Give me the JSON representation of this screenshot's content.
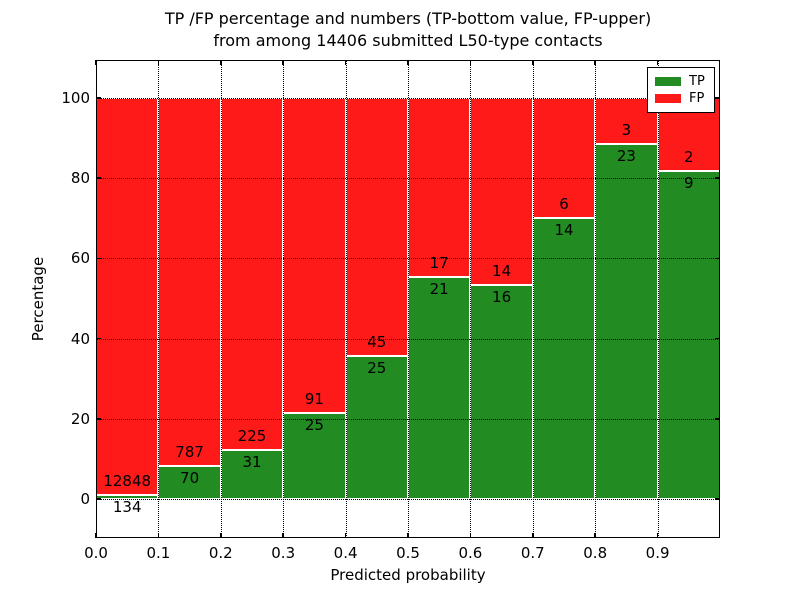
{
  "title": {
    "line1": "TP /FP percentage and numbers (TP-bottom value, FP-upper)",
    "line2": "from among 14406 submitted L50-type contacts"
  },
  "axes": {
    "xlabel": "Predicted probability",
    "ylabel": "Percentage",
    "x_tick_labels": [
      "0.0",
      "0.1",
      "0.2",
      "0.3",
      "0.4",
      "0.5",
      "0.6",
      "0.7",
      "0.8",
      "0.9"
    ],
    "y_tick_labels": [
      "0",
      "20",
      "40",
      "60",
      "80",
      "100"
    ],
    "y_tick_values": [
      0,
      20,
      40,
      60,
      80,
      100
    ]
  },
  "legend": {
    "items": [
      {
        "label": "TP",
        "color": "#228b22"
      },
      {
        "label": "FP",
        "color": "#ff1a1a"
      }
    ]
  },
  "colors": {
    "tp": "#228b22",
    "fp": "#ff1a1a",
    "edge": "#ffffff",
    "grid": "#000000",
    "axis": "#000000",
    "background": "#ffffff"
  },
  "chart_data": {
    "type": "bar",
    "stacked": true,
    "normalized_to_percent": true,
    "title": "TP /FP percentage and numbers (TP-bottom value, FP-upper) from among 14406 submitted L50-type contacts",
    "xlabel": "Predicted probability",
    "ylabel": "Percentage",
    "xlim": [
      0.0,
      1.0
    ],
    "ylim": [
      -10,
      110
    ],
    "bin_width": 0.1,
    "grid": true,
    "legend_position": "upper right",
    "categories": [
      "0.0-0.1",
      "0.1-0.2",
      "0.2-0.3",
      "0.3-0.4",
      "0.4-0.5",
      "0.5-0.6",
      "0.6-0.7",
      "0.7-0.8",
      "0.8-0.9",
      "0.9-1.0"
    ],
    "series": [
      {
        "name": "TP",
        "counts": [
          134,
          70,
          31,
          25,
          25,
          21,
          16,
          14,
          23,
          9
        ]
      },
      {
        "name": "FP",
        "counts": [
          12848,
          787,
          225,
          91,
          45,
          17,
          14,
          6,
          3,
          2
        ]
      }
    ],
    "tp_percent": [
      1.0,
      8.2,
      12.1,
      21.6,
      35.7,
      55.3,
      53.3,
      70.0,
      88.5,
      81.8
    ],
    "total": 14406
  }
}
